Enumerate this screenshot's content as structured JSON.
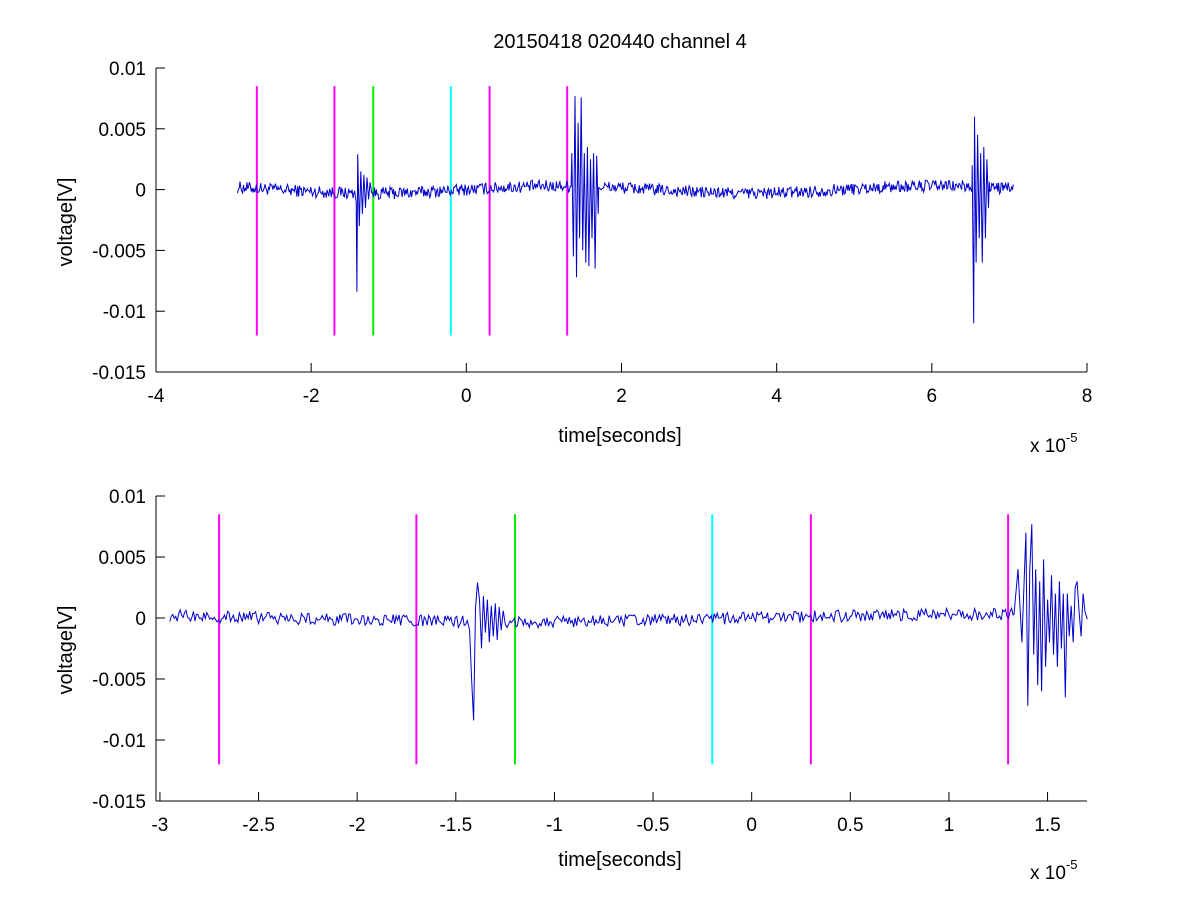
{
  "chart_data": [
    {
      "type": "line",
      "title": "20150418 020440 channel 4",
      "xlabel": "time[seconds]",
      "ylabel": "voltage[V]",
      "x_exponent_label": "x 10",
      "x_exponent": "-5",
      "xlim": [
        -4,
        8
      ],
      "ylim": [
        -0.015,
        0.01
      ],
      "xticks": [
        -4,
        -2,
        0,
        2,
        4,
        6,
        8
      ],
      "xtick_labels": [
        "-4",
        "-2",
        "0",
        "2",
        "4",
        "6",
        "8"
      ],
      "yticks": [
        0.01,
        0.005,
        0,
        -0.005,
        -0.01,
        -0.015
      ],
      "ytick_labels": [
        "0.01",
        "0.005",
        "0",
        "-0.005",
        "-0.01",
        "-0.015"
      ],
      "grid": false,
      "series": [
        {
          "color": "#0000cc",
          "x_range": [
            -2.95,
            7.05
          ],
          "baseline_noise": 0.0005,
          "bursts": [
            {
              "x": [
                -1.42,
                -1.41,
                -1.4,
                -1.38,
                -1.36,
                -1.34,
                -1.32,
                -1.3,
                -1.28,
                -1.26,
                -1.24,
                -1.22
              ],
              "y": [
                -0.001,
                -0.0084,
                0.0029,
                -0.003,
                0.0015,
                -0.002,
                0.0012,
                -0.0015,
                0.001,
                -0.0008,
                0.0006,
                -0.0003
              ]
            },
            {
              "x": [
                1.36,
                1.38,
                1.4,
                1.42,
                1.44,
                1.46,
                1.48,
                1.5,
                1.52,
                1.54,
                1.56,
                1.58,
                1.6,
                1.62,
                1.64,
                1.66,
                1.68,
                1.7
              ],
              "y": [
                0.003,
                -0.0055,
                0.0077,
                -0.0072,
                0.0055,
                -0.004,
                0.0076,
                -0.005,
                0.003,
                -0.006,
                0.0035,
                -0.0063,
                0.0025,
                -0.004,
                0.003,
                -0.0065,
                0.0028,
                -0.002
              ]
            },
            {
              "x": [
                6.52,
                6.54,
                6.55,
                6.57,
                6.59,
                6.61,
                6.63,
                6.65,
                6.67,
                6.69,
                6.71,
                6.73
              ],
              "y": [
                0.002,
                -0.011,
                0.006,
                -0.006,
                0.0045,
                -0.004,
                0.003,
                -0.006,
                0.0035,
                -0.004,
                0.0025,
                -0.0015
              ]
            }
          ]
        }
      ],
      "markers": [
        {
          "x": -2.7,
          "color": "#ff00ff"
        },
        {
          "x": -1.7,
          "color": "#ff00ff"
        },
        {
          "x": -1.2,
          "color": "#00ee00"
        },
        {
          "x": -0.2,
          "color": "#00ffff"
        },
        {
          "x": 0.3,
          "color": "#ff00ff"
        },
        {
          "x": 1.3,
          "color": "#ff00ff"
        }
      ],
      "marker_y_range": [
        -0.012,
        0.0085
      ]
    },
    {
      "type": "line",
      "xlabel": "time[seconds]",
      "ylabel": "voltage[V]",
      "x_exponent_label": "x 10",
      "x_exponent": "-5",
      "xlim": [
        -3.02,
        1.7
      ],
      "ylim": [
        -0.015,
        0.01
      ],
      "xticks": [
        -3,
        -2.5,
        -2,
        -1.5,
        -1,
        -0.5,
        0,
        0.5,
        1,
        1.5
      ],
      "xtick_labels": [
        "-3",
        "-2.5",
        "-2",
        "-1.5",
        "-1",
        "-0.5",
        "0",
        "0.5",
        "1",
        "1.5"
      ],
      "yticks": [
        0.01,
        0.005,
        0,
        -0.005,
        -0.01,
        -0.015
      ],
      "ytick_labels": [
        "0.01",
        "0.005",
        "0",
        "-0.005",
        "-0.01",
        "-0.015"
      ],
      "grid": false,
      "series": [
        {
          "color": "#0000cc",
          "x_range": [
            -2.95,
            1.7
          ],
          "baseline_noise": 0.0005,
          "bursts": [
            {
              "x": [
                -1.43,
                -1.42,
                -1.41,
                -1.4,
                -1.39,
                -1.38,
                -1.37,
                -1.36,
                -1.35,
                -1.34,
                -1.33,
                -1.32,
                -1.31,
                -1.3,
                -1.29,
                -1.28,
                -1.27,
                -1.26,
                -1.25
              ],
              "y": [
                -0.001,
                -0.005,
                -0.0084,
                0.0008,
                0.0029,
                0.0015,
                -0.0025,
                0.0018,
                -0.0012,
                0.0015,
                -0.002,
                0.001,
                -0.0015,
                0.0012,
                -0.0018,
                0.0009,
                -0.001,
                0.0006,
                -0.0004
              ]
            },
            {
              "x": [
                1.33,
                1.35,
                1.37,
                1.39,
                1.4,
                1.41,
                1.42,
                1.43,
                1.44,
                1.45,
                1.46,
                1.47,
                1.48,
                1.49,
                1.5,
                1.51,
                1.52,
                1.53,
                1.54,
                1.55,
                1.56,
                1.57,
                1.58,
                1.59,
                1.6,
                1.61,
                1.62,
                1.63,
                1.64,
                1.65,
                1.66,
                1.67,
                1.68,
                1.69,
                1.7
              ],
              "y": [
                0.0003,
                0.004,
                -0.002,
                0.007,
                -0.0072,
                0.004,
                0.0077,
                -0.003,
                0.004,
                -0.0055,
                0.003,
                -0.006,
                0.0048,
                -0.004,
                0.0015,
                -0.002,
                0.0035,
                -0.003,
                0.002,
                -0.004,
                0.003,
                -0.0025,
                0.002,
                -0.0065,
                0.002,
                -0.0015,
                0.001,
                -0.002,
                0.0025,
                0.003,
                0.0005,
                -0.0015,
                0.002,
                0.0005,
                0.0
              ]
            }
          ]
        }
      ],
      "markers": [
        {
          "x": -2.7,
          "color": "#ff00ff"
        },
        {
          "x": -1.7,
          "color": "#ff00ff"
        },
        {
          "x": -1.2,
          "color": "#00ee00"
        },
        {
          "x": -0.2,
          "color": "#00ffff"
        },
        {
          "x": 0.3,
          "color": "#ff00ff"
        },
        {
          "x": 1.3,
          "color": "#ff00ff"
        }
      ],
      "marker_y_range": [
        -0.012,
        0.0085
      ]
    }
  ]
}
